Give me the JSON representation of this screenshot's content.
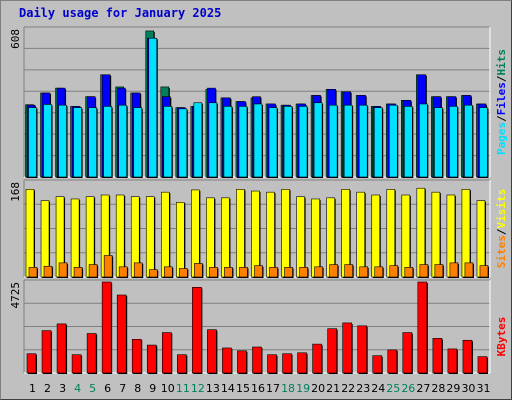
{
  "title": "Daily usage for January 2025",
  "colors": {
    "hits": "#00805c",
    "files": "#0000ff",
    "pages": "#00e0ff",
    "visits": "#ffff00",
    "sites": "#ff8000",
    "kbytes": "#ff0000",
    "weekend_label": "#00805c",
    "weekday_label": "#000000"
  },
  "chart_data": [
    {
      "type": "bar",
      "panel": "hits-files-pages",
      "ymax_label": "608",
      "ylim": [
        0,
        608
      ],
      "legend": {
        "hits": "Hits",
        "sep1": "/",
        "files": "Files",
        "sep2": "/",
        "pages": "Pages"
      },
      "categories": [
        "1",
        "2",
        "3",
        "4",
        "5",
        "6",
        "7",
        "8",
        "9",
        "10",
        "11",
        "12",
        "13",
        "14",
        "15",
        "16",
        "17",
        "18",
        "19",
        "20",
        "21",
        "22",
        "23",
        "24",
        "25",
        "26",
        "27",
        "28",
        "29",
        "30",
        "31"
      ],
      "series": [
        {
          "name": "Hits",
          "values": [
            297,
            345,
            365,
            290,
            330,
            420,
            370,
            345,
            600,
            370,
            285,
            290,
            360,
            325,
            310,
            325,
            300,
            295,
            300,
            335,
            360,
            350,
            335,
            290,
            300,
            315,
            420,
            330,
            330,
            335,
            300
          ]
        },
        {
          "name": "Files",
          "values": [
            295,
            345,
            365,
            290,
            330,
            420,
            365,
            345,
            570,
            330,
            285,
            290,
            365,
            325,
            310,
            330,
            300,
            295,
            300,
            335,
            360,
            350,
            335,
            290,
            300,
            315,
            420,
            330,
            330,
            335,
            300
          ]
        },
        {
          "name": "Pages",
          "values": [
            285,
            298,
            295,
            285,
            285,
            290,
            295,
            285,
            570,
            290,
            280,
            305,
            305,
            290,
            290,
            300,
            285,
            290,
            290,
            305,
            295,
            295,
            295,
            285,
            295,
            290,
            300,
            285,
            290,
            295,
            285
          ]
        }
      ]
    },
    {
      "type": "bar",
      "panel": "visits-sites",
      "ymax_label": "168",
      "ylim": [
        0,
        168
      ],
      "legend": {
        "visits": "Visits",
        "sep": "/",
        "sites": "Sites"
      },
      "categories": [
        "1",
        "2",
        "3",
        "4",
        "5",
        "6",
        "7",
        "8",
        "9",
        "10",
        "11",
        "12",
        "13",
        "14",
        "15",
        "16",
        "17",
        "18",
        "19",
        "20",
        "21",
        "22",
        "23",
        "24",
        "25",
        "26",
        "27",
        "28",
        "29",
        "30",
        "31"
      ],
      "series": [
        {
          "name": "Visits",
          "values": [
            155,
            135,
            142,
            138,
            142,
            145,
            145,
            142,
            142,
            150,
            132,
            154,
            140,
            140,
            155,
            152,
            150,
            155,
            142,
            138,
            140,
            155,
            150,
            145,
            155,
            145,
            157,
            150,
            145,
            155,
            135
          ]
        },
        {
          "name": "Sites",
          "values": [
            17,
            19,
            25,
            17,
            22,
            38,
            18,
            25,
            13,
            18,
            15,
            24,
            17,
            17,
            17,
            20,
            17,
            17,
            17,
            18,
            22,
            22,
            18,
            18,
            20,
            17,
            22,
            22,
            25,
            25,
            20
          ]
        }
      ]
    },
    {
      "type": "bar",
      "panel": "kbytes",
      "ymax_label": "4725",
      "ylim": [
        0,
        4725
      ],
      "legend": {
        "kbytes": "KBytes"
      },
      "categories": [
        "1",
        "2",
        "3",
        "4",
        "5",
        "6",
        "7",
        "8",
        "9",
        "10",
        "11",
        "12",
        "13",
        "14",
        "15",
        "16",
        "17",
        "18",
        "19",
        "20",
        "21",
        "22",
        "23",
        "24",
        "25",
        "26",
        "27",
        "28",
        "29",
        "30",
        "31"
      ],
      "series": [
        {
          "name": "KBytes",
          "values": [
            1000,
            2200,
            2550,
            950,
            2050,
            4725,
            4050,
            1750,
            1450,
            2100,
            950,
            4450,
            2250,
            1300,
            1150,
            1350,
            950,
            1000,
            1050,
            1500,
            2300,
            2600,
            2450,
            900,
            1200,
            2100,
            4725,
            1800,
            1250,
            1700,
            850
          ]
        }
      ]
    }
  ],
  "weekend_days": [
    4,
    5,
    11,
    12,
    18,
    19,
    25,
    26
  ]
}
